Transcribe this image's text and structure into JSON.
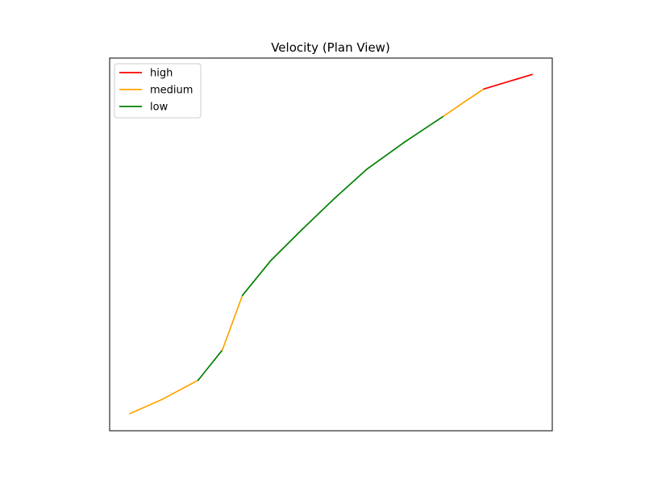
{
  "chart_data": {
    "type": "line",
    "title": "Velocity (Plan View)",
    "xlabel": "",
    "ylabel": "",
    "axes_ticks": "hidden",
    "grid": false,
    "legend": {
      "position": "top-left",
      "entries": [
        {
          "label": "high",
          "color": "#ff0000"
        },
        {
          "label": "medium",
          "color": "#ffa500"
        },
        {
          "label": "low",
          "color": "#008000"
        }
      ]
    },
    "path": [
      [
        0.0,
        0.0
      ],
      [
        0.08,
        0.038
      ],
      [
        0.17,
        0.09
      ],
      [
        0.23,
        0.171
      ],
      [
        0.28,
        0.318
      ],
      [
        0.35,
        0.411
      ],
      [
        0.43,
        0.497
      ],
      [
        0.51,
        0.58
      ],
      [
        0.59,
        0.658
      ],
      [
        0.68,
        0.728
      ],
      [
        0.78,
        0.8
      ],
      [
        0.83,
        0.837
      ],
      [
        0.88,
        0.873
      ],
      [
        1.0,
        0.912
      ]
    ],
    "segment_classes": [
      "medium",
      "medium",
      "low",
      "medium",
      "low",
      "low",
      "low",
      "low",
      "low",
      "low",
      "medium",
      "medium",
      "high"
    ],
    "xlim": [
      -0.05,
      1.05
    ],
    "ylim": [
      -0.046,
      0.956
    ]
  }
}
